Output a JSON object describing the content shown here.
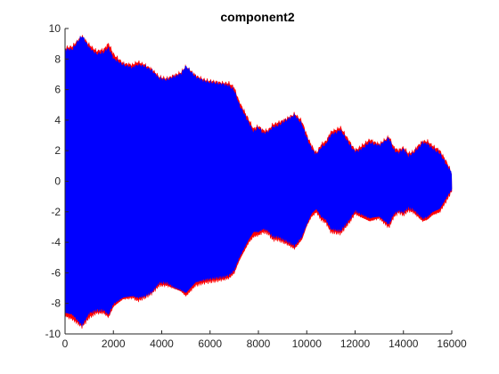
{
  "chart_data": {
    "type": "area",
    "title": "component2",
    "xlabel": "",
    "ylabel": "",
    "xlim": [
      0,
      16000
    ],
    "ylim": [
      -10,
      10
    ],
    "x_ticks": [
      0,
      2000,
      4000,
      6000,
      8000,
      10000,
      12000,
      14000,
      16000
    ],
    "x_tick_labels": [
      "0",
      "2000",
      "4000",
      "6000",
      "8000",
      "10000",
      "12000",
      "14000",
      "16000"
    ],
    "y_ticks": [
      -10,
      -8,
      -6,
      -4,
      -2,
      0,
      2,
      4,
      6,
      8,
      10
    ],
    "y_tick_labels": [
      "-10",
      "-8",
      "-6",
      "-4",
      "-2",
      "0",
      "2",
      "4",
      "6",
      "8",
      "10"
    ],
    "grid": false,
    "series": [
      {
        "color": "#ff0000",
        "x": [
          0,
          300,
          700,
          1000,
          1300,
          1600,
          1800,
          2000,
          2400,
          2800,
          3000,
          3300,
          3600,
          3900,
          4200,
          4500,
          4800,
          5000,
          5400,
          5800,
          6200,
          6600,
          6800,
          7000,
          7200,
          7400,
          7600,
          7800,
          8000,
          8200,
          8400,
          8600,
          8800,
          9200,
          9500,
          9800,
          10000,
          10200,
          10400,
          10600,
          10800,
          11000,
          11400,
          11600,
          11800,
          12000,
          12200,
          12600,
          13000,
          13400,
          13600,
          13800,
          14000,
          14200,
          14400,
          14600,
          14800,
          15000,
          15200,
          15500,
          15800,
          16000
        ],
        "upper": [
          8.7,
          8.8,
          9.5,
          8.9,
          8.5,
          8.6,
          9.0,
          8.3,
          7.7,
          7.6,
          7.8,
          7.6,
          7.3,
          6.8,
          6.7,
          6.9,
          7.1,
          7.5,
          6.9,
          6.6,
          6.5,
          6.4,
          6.4,
          6.1,
          5.2,
          4.6,
          4.0,
          3.4,
          3.6,
          3.3,
          3.3,
          3.7,
          3.8,
          4.1,
          4.4,
          3.9,
          3.0,
          2.3,
          1.8,
          2.4,
          2.6,
          3.2,
          3.5,
          3.0,
          2.5,
          2.0,
          2.2,
          2.7,
          2.4,
          2.9,
          2.2,
          2.0,
          2.2,
          1.8,
          1.9,
          2.3,
          2.6,
          2.6,
          2.3,
          2.0,
          1.2,
          0.5
        ],
        "lower": [
          -8.8,
          -9.0,
          -9.5,
          -8.9,
          -8.6,
          -8.6,
          -8.9,
          -8.2,
          -7.7,
          -7.6,
          -7.8,
          -7.6,
          -7.3,
          -6.8,
          -6.8,
          -7.0,
          -7.2,
          -7.5,
          -6.8,
          -6.6,
          -6.5,
          -6.4,
          -6.3,
          -6.0,
          -5.2,
          -4.6,
          -4.0,
          -3.6,
          -3.5,
          -3.3,
          -3.4,
          -3.8,
          -3.8,
          -4.1,
          -4.4,
          -3.8,
          -2.9,
          -2.3,
          -2.0,
          -2.5,
          -2.7,
          -3.3,
          -3.4,
          -3.0,
          -2.6,
          -2.1,
          -2.3,
          -2.6,
          -2.4,
          -3.0,
          -2.3,
          -2.0,
          -2.2,
          -1.9,
          -2.0,
          -2.3,
          -2.6,
          -2.5,
          -2.2,
          -2.0,
          -1.2,
          -0.6
        ]
      },
      {
        "color": "#0000ff",
        "x": [
          0,
          300,
          700,
          1000,
          1300,
          1600,
          1800,
          2000,
          2400,
          2800,
          3000,
          3300,
          3600,
          3900,
          4200,
          4500,
          4800,
          5000,
          5400,
          5800,
          6200,
          6600,
          6800,
          7000,
          7200,
          7400,
          7600,
          7800,
          8000,
          8200,
          8400,
          8600,
          8800,
          9200,
          9500,
          9800,
          10000,
          10200,
          10400,
          10600,
          10800,
          11000,
          11400,
          11600,
          11800,
          12000,
          12200,
          12600,
          13000,
          13400,
          13600,
          13800,
          14000,
          14200,
          14400,
          14600,
          14800,
          15000,
          15200,
          15500,
          15800,
          16000
        ],
        "upper": [
          8.6,
          8.6,
          9.5,
          8.7,
          8.3,
          8.4,
          8.7,
          8.0,
          7.6,
          7.4,
          7.6,
          7.5,
          7.2,
          6.7,
          6.6,
          6.8,
          7.0,
          7.5,
          6.8,
          6.5,
          6.4,
          6.3,
          6.2,
          5.9,
          5.0,
          4.4,
          3.8,
          3.2,
          3.5,
          3.1,
          3.2,
          3.5,
          3.6,
          4.0,
          4.3,
          3.7,
          2.8,
          2.1,
          1.7,
          2.2,
          2.4,
          3.0,
          3.3,
          2.8,
          2.3,
          1.9,
          2.0,
          2.5,
          2.3,
          2.8,
          2.0,
          1.8,
          2.1,
          1.6,
          1.8,
          2.1,
          2.5,
          2.4,
          2.1,
          1.8,
          1.0,
          0.5
        ],
        "lower": [
          -8.6,
          -8.7,
          -9.4,
          -8.6,
          -8.4,
          -8.4,
          -8.7,
          -8.0,
          -7.6,
          -7.5,
          -7.6,
          -7.5,
          -7.2,
          -6.6,
          -6.6,
          -6.9,
          -7.1,
          -7.3,
          -6.6,
          -6.4,
          -6.3,
          -6.2,
          -6.1,
          -5.8,
          -5.0,
          -4.4,
          -3.8,
          -3.3,
          -3.3,
          -3.1,
          -3.2,
          -3.6,
          -3.6,
          -3.9,
          -4.2,
          -3.6,
          -2.8,
          -2.1,
          -1.8,
          -2.3,
          -2.5,
          -3.1,
          -3.2,
          -2.8,
          -2.4,
          -1.9,
          -2.1,
          -2.4,
          -2.3,
          -2.8,
          -2.1,
          -1.9,
          -2.0,
          -1.7,
          -1.8,
          -2.1,
          -2.4,
          -2.3,
          -2.0,
          -1.8,
          -1.0,
          -0.5
        ]
      }
    ]
  }
}
